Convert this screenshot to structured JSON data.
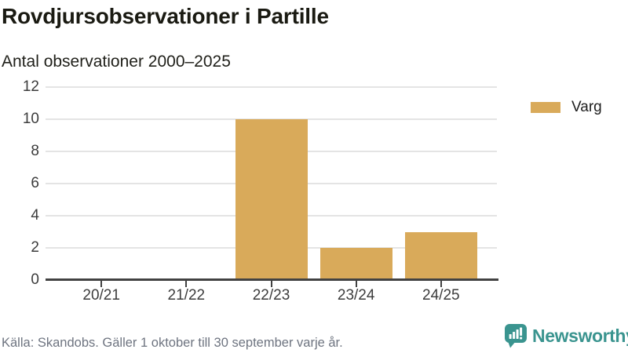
{
  "header": {
    "title": "Rovdjursobservationer i Partille",
    "subtitle": "Antal observationer 2000–2025"
  },
  "legend": {
    "items": [
      {
        "label": "Varg",
        "color": "#d9aa5a"
      }
    ]
  },
  "chart_data": {
    "type": "bar",
    "title": "Rovdjursobservationer i Partille",
    "subtitle": "Antal observationer 2000–2025",
    "categories": [
      "20/21",
      "21/22",
      "22/23",
      "23/24",
      "24/25"
    ],
    "series": [
      {
        "name": "Varg",
        "color": "#d9aa5a",
        "values": [
          0,
          0,
          10,
          2,
          3
        ]
      }
    ],
    "xlabel": "",
    "ylabel": "",
    "ylim": [
      0,
      12
    ],
    "yticks": [
      0,
      2,
      4,
      6,
      8,
      10,
      12
    ],
    "grid": true,
    "legend_position": "top-right"
  },
  "footer": {
    "source": "Källa: Skandobs. Gäller 1 oktober till 30 september varje år.",
    "brand": {
      "name": "Newsworthy",
      "color": "#3a948f",
      "icon": "newsworthy-chart-bubble-icon"
    }
  }
}
